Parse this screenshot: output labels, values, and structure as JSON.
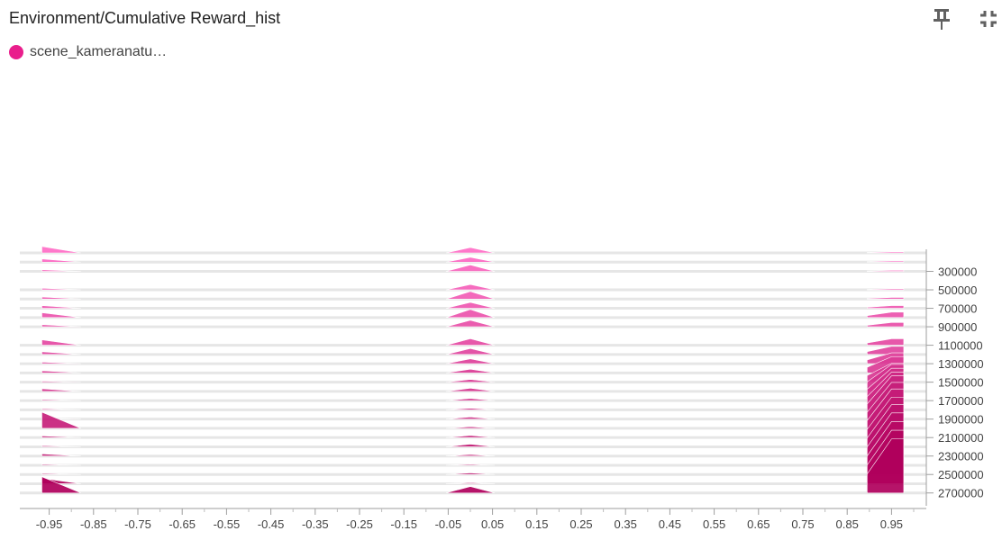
{
  "header": {
    "title": "Environment/Cumulative Reward_hist",
    "pin_icon": "pin-icon",
    "collapse_icon": "fullscreen-exit-icon"
  },
  "legend": {
    "label": "scene_kameranatu…",
    "color": "#e91e8c"
  },
  "chart_data": {
    "type": "histogram-offset",
    "title": "Environment/Cumulative Reward_hist",
    "x_ticks": [
      "-0.95",
      "-0.85",
      "-0.75",
      "-0.65",
      "-0.55",
      "-0.45",
      "-0.35",
      "-0.25",
      "-0.15",
      "-0.05",
      "0.05",
      "0.15",
      "0.25",
      "0.35",
      "0.45",
      "0.55",
      "0.65",
      "0.75",
      "0.85",
      "0.95"
    ],
    "xlim": [
      -1.0,
      1.0
    ],
    "y_ticks": [
      "300000",
      "500000",
      "700000",
      "900000",
      "1100000",
      "1300000",
      "1500000",
      "1700000",
      "1900000",
      "2100000",
      "2300000",
      "2500000",
      "2700000"
    ],
    "ylim": [
      100000,
      2800000
    ],
    "color_early": "#ff6ec7",
    "color_late": "#b0005c",
    "series": [
      {
        "step": 100000,
        "bins": [
          [
            -0.95,
            0.12
          ],
          [
            0.0,
            0.1
          ],
          [
            0.95,
            0.02
          ]
        ]
      },
      {
        "step": 200000,
        "bins": [
          [
            -0.95,
            0.06
          ],
          [
            0.0,
            0.09
          ],
          [
            0.95,
            0.02
          ]
        ]
      },
      {
        "step": 300000,
        "bins": [
          [
            -0.95,
            0.03
          ],
          [
            0.0,
            0.12
          ],
          [
            0.95,
            0.02
          ]
        ]
      },
      {
        "step": 500000,
        "bins": [
          [
            -0.95,
            0.03
          ],
          [
            0.0,
            0.1
          ],
          [
            0.95,
            0.02
          ]
        ]
      },
      {
        "step": 600000,
        "bins": [
          [
            -0.95,
            0.04
          ],
          [
            0.0,
            0.14
          ],
          [
            0.95,
            0.03
          ]
        ]
      },
      {
        "step": 700000,
        "bins": [
          [
            -0.95,
            0.05
          ],
          [
            0.0,
            0.11
          ],
          [
            0.95,
            0.05
          ]
        ]
      },
      {
        "step": 800000,
        "bins": [
          [
            -0.95,
            0.09
          ],
          [
            0.0,
            0.15
          ],
          [
            0.95,
            0.1
          ]
        ]
      },
      {
        "step": 900000,
        "bins": [
          [
            -0.95,
            0.04
          ],
          [
            0.0,
            0.12
          ],
          [
            0.95,
            0.08
          ]
        ]
      },
      {
        "step": 1100000,
        "bins": [
          [
            -0.95,
            0.1
          ],
          [
            0.0,
            0.12
          ],
          [
            0.95,
            0.12
          ]
        ]
      },
      {
        "step": 1200000,
        "bins": [
          [
            -0.95,
            0.05
          ],
          [
            0.0,
            0.11
          ],
          [
            0.95,
            0.15
          ]
        ]
      },
      {
        "step": 1300000,
        "bins": [
          [
            -0.95,
            0.03
          ],
          [
            0.0,
            0.09
          ],
          [
            0.95,
            0.2
          ]
        ]
      },
      {
        "step": 1400000,
        "bins": [
          [
            -0.95,
            0.04
          ],
          [
            0.0,
            0.07
          ],
          [
            0.95,
            0.3
          ]
        ]
      },
      {
        "step": 1500000,
        "bins": [
          [
            -0.95,
            0.02
          ],
          [
            0.0,
            0.05
          ],
          [
            0.95,
            0.35
          ]
        ]
      },
      {
        "step": 1600000,
        "bins": [
          [
            -0.95,
            0.05
          ],
          [
            0.0,
            0.06
          ],
          [
            0.95,
            0.5
          ]
        ]
      },
      {
        "step": 1700000,
        "bins": [
          [
            -0.95,
            0.02
          ],
          [
            0.0,
            0.04
          ],
          [
            0.95,
            0.6
          ]
        ]
      },
      {
        "step": 1800000,
        "bins": [
          [
            -0.95,
            0.02
          ],
          [
            0.0,
            0.03
          ],
          [
            0.95,
            0.7
          ]
        ]
      },
      {
        "step": 1900000,
        "bins": [
          [
            -0.95,
            0.02
          ],
          [
            0.0,
            0.04
          ],
          [
            0.95,
            0.8
          ]
        ]
      },
      {
        "step": 2000000,
        "bins": [
          [
            -0.95,
            0.3
          ],
          [
            0.0,
            0.03
          ],
          [
            0.95,
            0.85
          ]
        ]
      },
      {
        "step": 2100000,
        "bins": [
          [
            -0.95,
            0.03
          ],
          [
            0.0,
            0.04
          ],
          [
            0.95,
            0.9
          ]
        ]
      },
      {
        "step": 2200000,
        "bins": [
          [
            -0.95,
            0.02
          ],
          [
            0.0,
            0.05
          ],
          [
            0.95,
            0.92
          ]
        ]
      },
      {
        "step": 2300000,
        "bins": [
          [
            -0.95,
            0.04
          ],
          [
            0.0,
            0.03
          ],
          [
            0.95,
            0.95
          ]
        ]
      },
      {
        "step": 2400000,
        "bins": [
          [
            -0.95,
            0.02
          ],
          [
            0.0,
            0.02
          ],
          [
            0.95,
            0.97
          ]
        ]
      },
      {
        "step": 2500000,
        "bins": [
          [
            -0.95,
            0.02
          ],
          [
            0.0,
            0.03
          ],
          [
            0.95,
            0.98
          ]
        ]
      },
      {
        "step": 2600000,
        "bins": [
          [
            -0.95,
            0.1
          ],
          [
            0.0,
            0.02
          ],
          [
            0.95,
            0.99
          ]
        ]
      },
      {
        "step": 2700000,
        "bins": [
          [
            -0.95,
            0.3
          ],
          [
            0.0,
            0.12
          ],
          [
            0.95,
            1.0
          ]
        ]
      }
    ]
  }
}
